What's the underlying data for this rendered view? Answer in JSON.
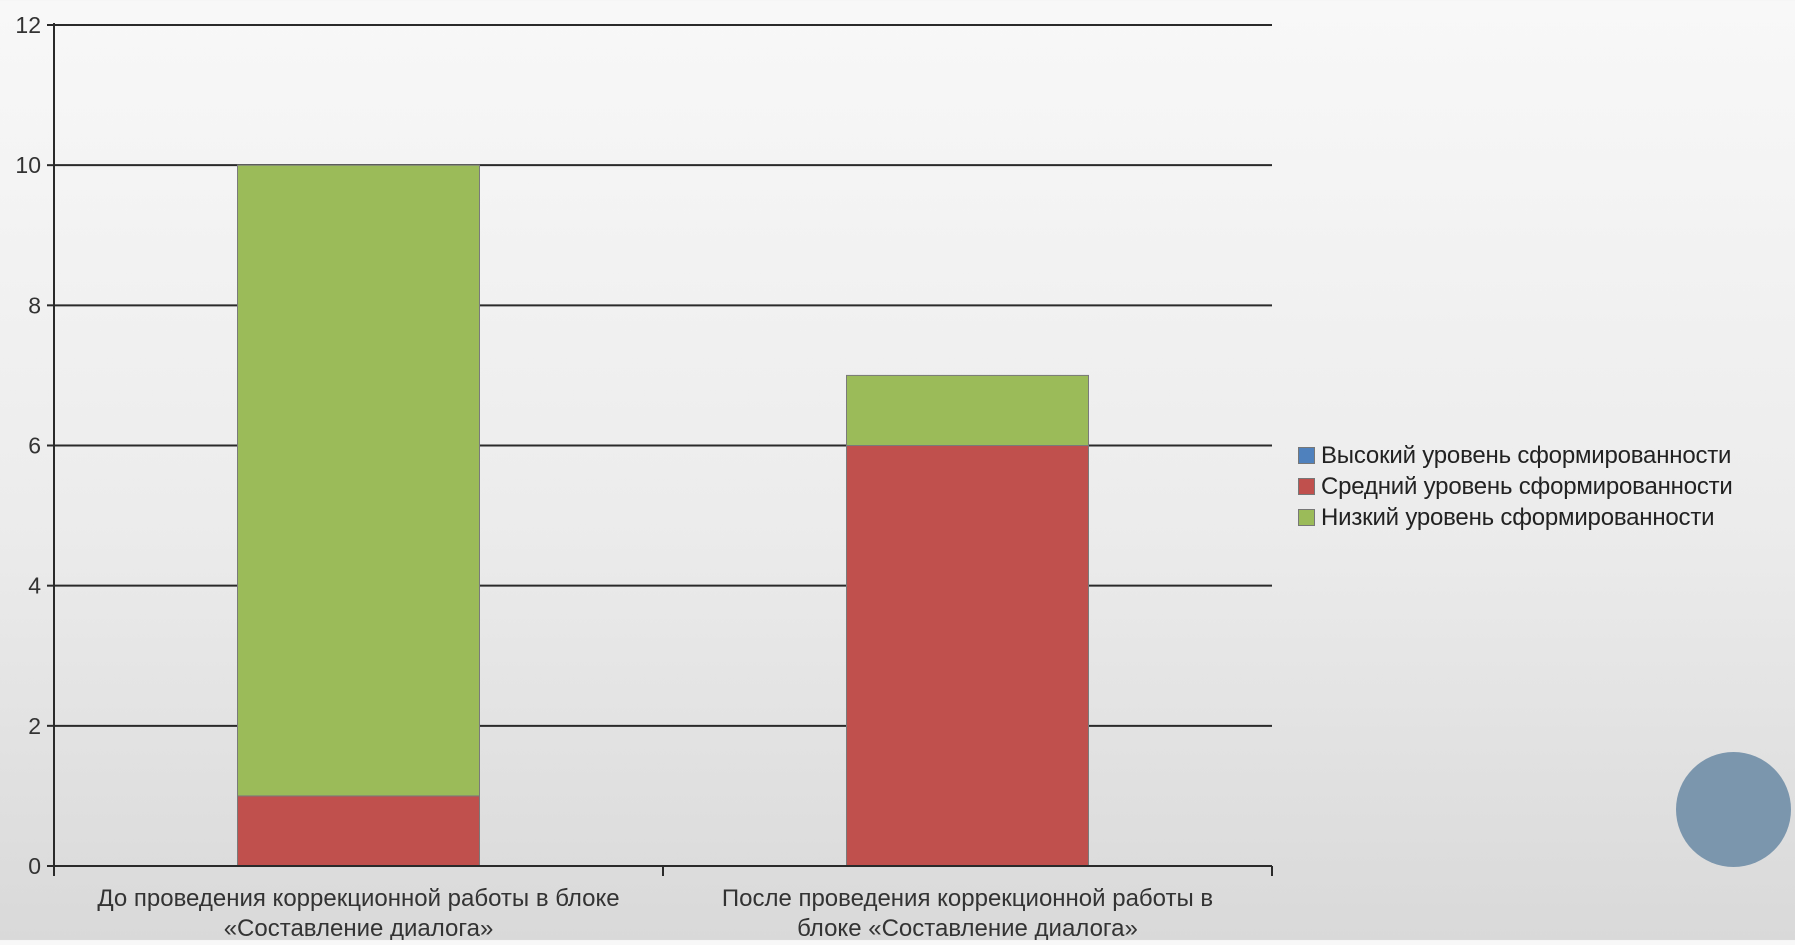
{
  "chart_data": {
    "type": "bar",
    "stacked": true,
    "categories": [
      [
        "До проведения коррекционной работы в блоке",
        "«Составление диалога»"
      ],
      [
        "После проведения коррекционной работы в",
        "блоке «Составление диалога»"
      ]
    ],
    "series": [
      {
        "name": "Высокий уровень сформированности",
        "values": [
          0,
          0
        ],
        "color": "#4f81bd"
      },
      {
        "name": "Средний уровень сформированности",
        "values": [
          1,
          6
        ],
        "color": "#c0504d"
      },
      {
        "name": "Низкий уровень сформированности",
        "values": [
          9,
          1
        ],
        "color": "#9bbb59"
      }
    ],
    "ylim": [
      0,
      12
    ],
    "yticks": [
      0,
      2,
      4,
      6,
      8,
      10,
      12
    ],
    "grid": true,
    "legend_position": "right"
  },
  "decoration": {
    "circle_color": "#7b96ad"
  }
}
